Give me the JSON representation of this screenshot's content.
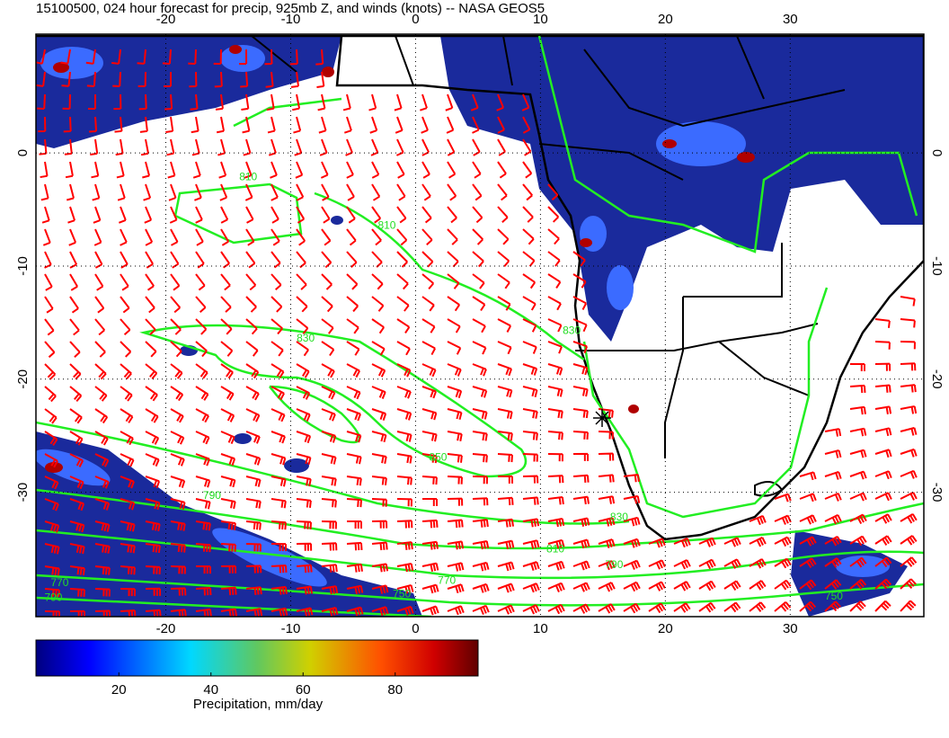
{
  "title": "15100500, 024 hour forecast for precip, 925mb Z, and winds (knots) -- NASA GEOS5",
  "map": {
    "lon_range": [
      -30.4,
      40.7
    ],
    "lat_range": [
      10.5,
      -41
    ],
    "lon_ticks": [
      -20,
      -10,
      0,
      10,
      20,
      30
    ],
    "lat_ticks": [
      0,
      -10,
      -20,
      -30
    ]
  },
  "contour_labels": [
    {
      "text": "810",
      "lon": -13.4,
      "lat": -2.4
    },
    {
      "text": "810",
      "lon": -2.3,
      "lat": -6.7
    },
    {
      "text": "830",
      "lon": -8.8,
      "lat": -16.7
    },
    {
      "text": "830",
      "lon": 12.5,
      "lat": -16.0
    },
    {
      "text": "850",
      "lon": 1.8,
      "lat": -27.2
    },
    {
      "text": "830",
      "lon": 16.3,
      "lat": -32.5
    },
    {
      "text": "810",
      "lon": 11.2,
      "lat": -35.3
    },
    {
      "text": "790",
      "lon": 15.9,
      "lat": -36.7
    },
    {
      "text": "790",
      "lon": -16.3,
      "lat": -30.6
    },
    {
      "text": "770",
      "lon": 2.5,
      "lat": -38.1
    },
    {
      "text": "750",
      "lon": -1.1,
      "lat": -39.3
    },
    {
      "text": "770",
      "lon": -28.5,
      "lat": -38.3
    },
    {
      "text": "790",
      "lon": -29.0,
      "lat": -39.6
    },
    {
      "text": "750",
      "lon": 33.5,
      "lat": -39.5
    }
  ],
  "colorbar": {
    "range": [
      2,
      98
    ],
    "ticks": [
      20,
      40,
      60,
      80
    ],
    "label": "Precipitation, mm/day"
  }
}
